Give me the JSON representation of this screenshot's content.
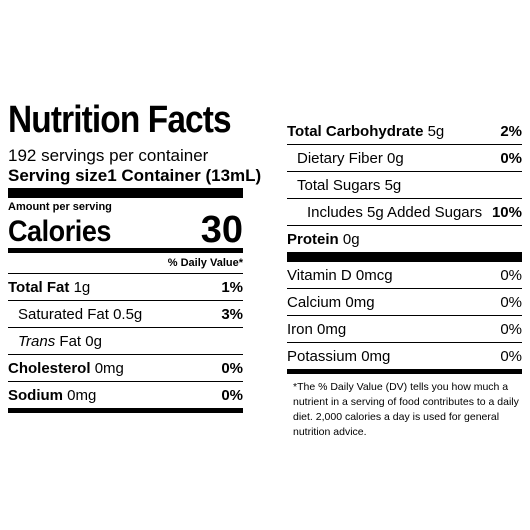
{
  "title": "Nutrition Facts",
  "servings_per_container": "192 servings per container",
  "serving_size": {
    "label": "Serving size",
    "value": "1 Container (13mL)"
  },
  "amount_per_serving": "Amount per serving",
  "calories": {
    "label": "Calories",
    "value": "30"
  },
  "daily_value_header": "% Daily Value*",
  "left_rows": [
    {
      "name": "Total Fat",
      "amount": "1g",
      "dv": "1%"
    },
    {
      "name": "Saturated Fat",
      "amount": "0.5g",
      "dv": "3%"
    },
    {
      "prefix": "Trans",
      "name": "Fat",
      "amount": "0g",
      "dv": ""
    },
    {
      "name": "Cholesterol",
      "amount": "0mg",
      "dv": "0%"
    },
    {
      "name": "Sodium",
      "amount": "0mg",
      "dv": "0%"
    }
  ],
  "right_rows": [
    {
      "name": "Total Carbohydrate",
      "amount": "5g",
      "dv": "2%"
    },
    {
      "name": "Dietary Fiber",
      "amount": "0g",
      "dv": "0%"
    },
    {
      "name": "Total Sugars",
      "amount": "5g",
      "dv": ""
    },
    {
      "name": "Includes 5g Added Sugars",
      "amount": "",
      "dv": "10%"
    },
    {
      "name": "Protein",
      "amount": "0g",
      "dv": ""
    }
  ],
  "vitamins": [
    {
      "name": "Vitamin D",
      "amount": "0mcg",
      "dv": "0%"
    },
    {
      "name": "Calcium",
      "amount": "0mg",
      "dv": "0%"
    },
    {
      "name": "Iron",
      "amount": "0mg",
      "dv": "0%"
    },
    {
      "name": "Potassium",
      "amount": "0mg",
      "dv": "0%"
    }
  ],
  "footnote": "*The % Daily Value (DV) tells you how much a nutrient in a serving of food contributes to a daily diet. 2,000 calories a day is used for general nutrition advice."
}
